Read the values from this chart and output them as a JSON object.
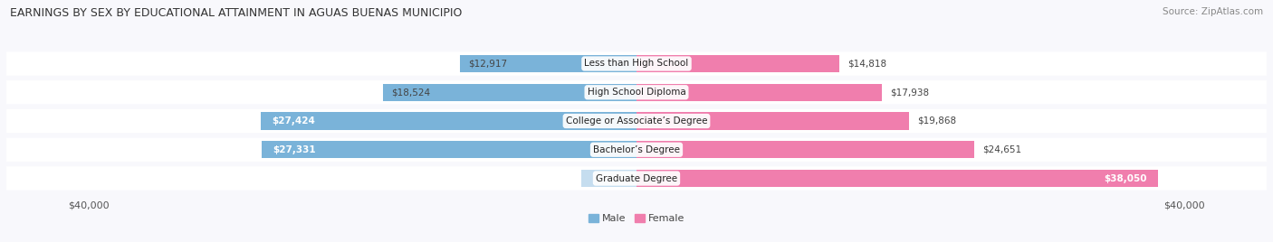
{
  "title": "EARNINGS BY SEX BY EDUCATIONAL ATTAINMENT IN AGUAS BUENAS MUNICIPIO",
  "source": "Source: ZipAtlas.com",
  "categories": [
    "Less than High School",
    "High School Diploma",
    "College or Associate’s Degree",
    "Bachelor’s Degree",
    "Graduate Degree"
  ],
  "male_values": [
    12917,
    18524,
    27424,
    27331,
    0
  ],
  "female_values": [
    14818,
    17938,
    19868,
    24651,
    38050
  ],
  "male_color": "#7ab3d9",
  "female_color": "#f07ead",
  "male_color_pale": "#c5ddef",
  "female_color_pale": "#f8c8da",
  "row_bg_color": "#f0f0f5",
  "fig_bg_color": "#f8f8fc",
  "xlim": 40000,
  "xlabel_left": "$40,000",
  "xlabel_right": "$40,000",
  "male_label": "Male",
  "female_label": "Female",
  "title_fontsize": 9.0,
  "source_fontsize": 7.5,
  "bar_label_fontsize": 7.5,
  "category_fontsize": 7.5,
  "axis_fontsize": 8.0,
  "legend_fontsize": 8.0,
  "male_label_inside_threshold": 20000,
  "female_label_inside_threshold": 20000
}
